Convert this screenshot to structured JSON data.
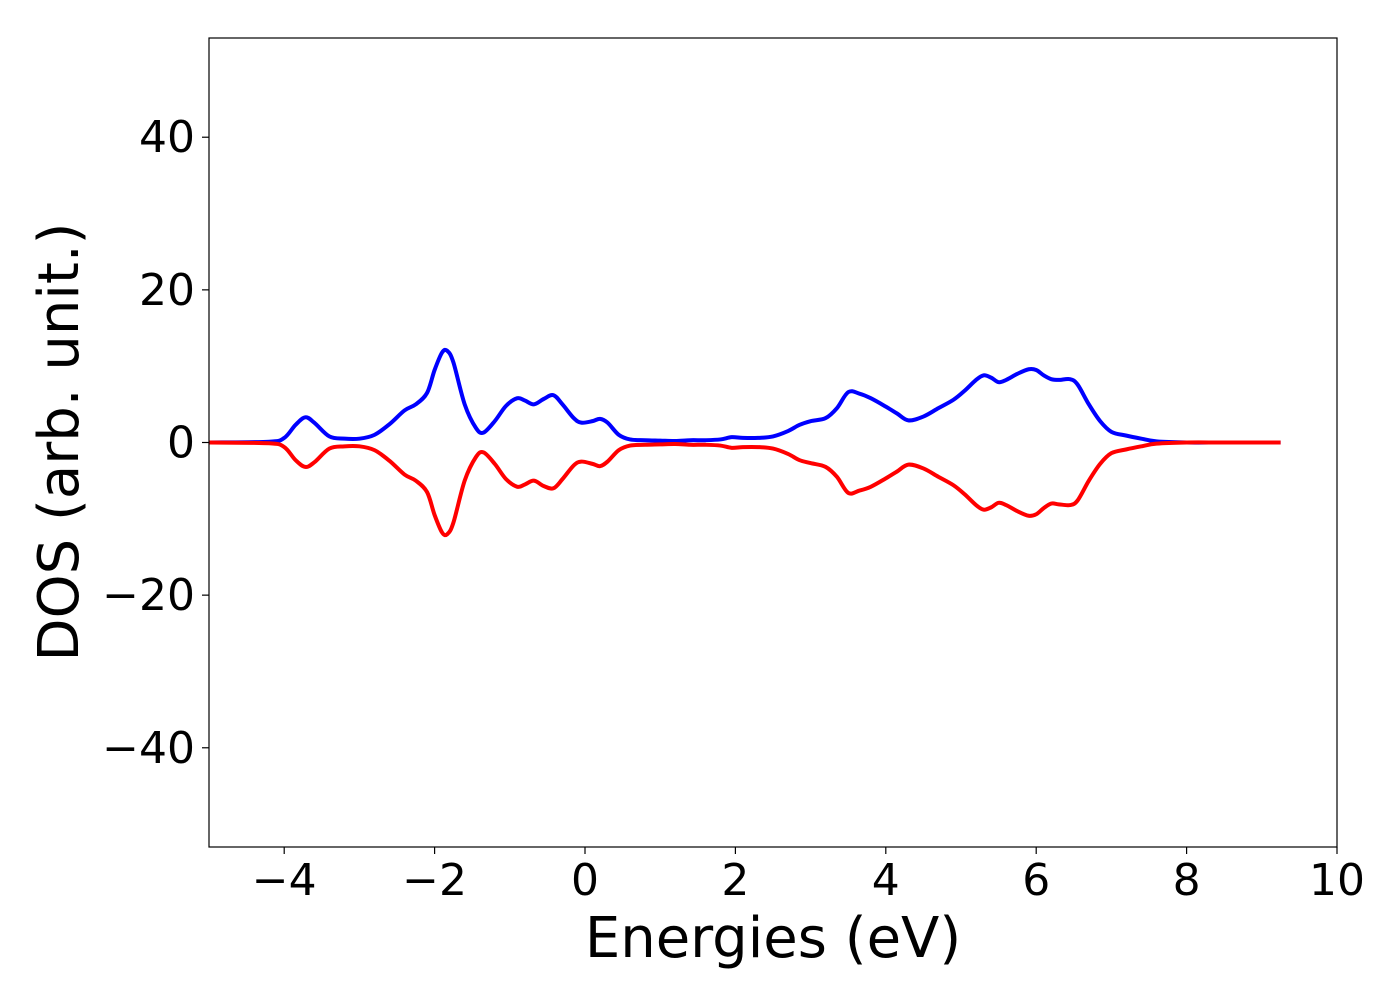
{
  "chart_data": {
    "type": "line",
    "title": "",
    "xlabel": "Energies (eV)",
    "ylabel": "DOS (arb. unit.)",
    "xlim": [
      -5,
      10
    ],
    "ylim": [
      -53,
      53
    ],
    "xticks": [
      -4,
      -2,
      0,
      2,
      4,
      6,
      8,
      10
    ],
    "xtick_labels": [
      "−4",
      "−2",
      "0",
      "2",
      "4",
      "6",
      "8",
      "10"
    ],
    "yticks": [
      -40,
      -20,
      0,
      20,
      40
    ],
    "ytick_labels": [
      "−40",
      "−20",
      "0",
      "20",
      "40"
    ],
    "grid": false,
    "legend": "none",
    "series": [
      {
        "color": "#0000ff",
        "x": [
          -5.0,
          -4.2,
          -4.0,
          -3.85,
          -3.72,
          -3.6,
          -3.4,
          -3.2,
          -3.0,
          -2.8,
          -2.6,
          -2.4,
          -2.25,
          -2.1,
          -2.0,
          -1.9,
          -1.83,
          -1.75,
          -1.6,
          -1.45,
          -1.35,
          -1.2,
          -1.05,
          -0.9,
          -0.8,
          -0.68,
          -0.55,
          -0.42,
          -0.3,
          -0.15,
          -0.05,
          0.1,
          0.2,
          0.3,
          0.45,
          0.6,
          0.8,
          1.0,
          1.2,
          1.4,
          1.6,
          1.8,
          1.95,
          2.1,
          2.3,
          2.5,
          2.7,
          2.85,
          3.0,
          3.2,
          3.35,
          3.5,
          3.65,
          3.8,
          4.0,
          4.15,
          4.3,
          4.5,
          4.7,
          4.9,
          5.05,
          5.2,
          5.3,
          5.4,
          5.5,
          5.6,
          5.75,
          5.9,
          6.0,
          6.1,
          6.2,
          6.3,
          6.45,
          6.55,
          6.7,
          6.85,
          7.0,
          7.2,
          7.4,
          7.6,
          8.0,
          8.5,
          9.25
        ],
        "y": [
          0.0,
          0.1,
          0.6,
          2.3,
          3.3,
          2.6,
          0.8,
          0.5,
          0.5,
          1.0,
          2.4,
          4.2,
          5.0,
          6.5,
          9.5,
          11.8,
          12.0,
          10.5,
          5.0,
          1.9,
          1.3,
          2.8,
          4.8,
          5.8,
          5.5,
          5.0,
          5.7,
          6.2,
          5.0,
          3.2,
          2.6,
          2.8,
          3.1,
          2.6,
          1.0,
          0.4,
          0.3,
          0.25,
          0.2,
          0.3,
          0.3,
          0.4,
          0.7,
          0.6,
          0.6,
          0.8,
          1.5,
          2.3,
          2.8,
          3.2,
          4.5,
          6.6,
          6.4,
          5.8,
          4.7,
          3.8,
          2.9,
          3.4,
          4.5,
          5.6,
          6.8,
          8.2,
          8.8,
          8.5,
          7.9,
          8.2,
          9.0,
          9.6,
          9.5,
          8.8,
          8.3,
          8.2,
          8.3,
          7.6,
          5.0,
          2.8,
          1.4,
          0.9,
          0.5,
          0.15,
          0.0,
          0.0,
          0.0
        ]
      },
      {
        "color": "#ff0000",
        "x": [
          -5.0,
          -4.2,
          -4.0,
          -3.85,
          -3.72,
          -3.6,
          -3.4,
          -3.2,
          -3.0,
          -2.8,
          -2.6,
          -2.4,
          -2.25,
          -2.1,
          -2.0,
          -1.9,
          -1.83,
          -1.75,
          -1.6,
          -1.45,
          -1.35,
          -1.2,
          -1.05,
          -0.9,
          -0.8,
          -0.68,
          -0.55,
          -0.42,
          -0.3,
          -0.15,
          -0.05,
          0.1,
          0.2,
          0.3,
          0.45,
          0.6,
          0.8,
          1.0,
          1.2,
          1.4,
          1.6,
          1.8,
          1.95,
          2.1,
          2.3,
          2.5,
          2.7,
          2.85,
          3.0,
          3.2,
          3.35,
          3.5,
          3.65,
          3.8,
          4.0,
          4.15,
          4.3,
          4.5,
          4.7,
          4.9,
          5.05,
          5.2,
          5.3,
          5.4,
          5.5,
          5.6,
          5.75,
          5.9,
          6.0,
          6.1,
          6.2,
          6.3,
          6.45,
          6.55,
          6.7,
          6.85,
          7.0,
          7.2,
          7.4,
          7.6,
          8.0,
          8.5,
          9.25
        ],
        "y": [
          0.0,
          -0.1,
          -0.6,
          -2.3,
          -3.2,
          -2.6,
          -0.8,
          -0.5,
          -0.5,
          -1.0,
          -2.4,
          -4.2,
          -5.0,
          -6.5,
          -9.5,
          -11.8,
          -12.0,
          -10.5,
          -5.0,
          -1.9,
          -1.3,
          -2.8,
          -4.8,
          -5.8,
          -5.5,
          -5.0,
          -5.7,
          -6.0,
          -4.8,
          -3.0,
          -2.5,
          -2.8,
          -3.1,
          -2.5,
          -1.0,
          -0.4,
          -0.3,
          -0.25,
          -0.2,
          -0.3,
          -0.3,
          -0.4,
          -0.7,
          -0.6,
          -0.6,
          -0.8,
          -1.5,
          -2.3,
          -2.7,
          -3.2,
          -4.5,
          -6.6,
          -6.3,
          -5.8,
          -4.7,
          -3.8,
          -2.9,
          -3.4,
          -4.5,
          -5.6,
          -6.8,
          -8.2,
          -8.8,
          -8.5,
          -7.9,
          -8.2,
          -9.0,
          -9.6,
          -9.4,
          -8.6,
          -8.0,
          -8.1,
          -8.2,
          -7.6,
          -5.0,
          -2.8,
          -1.4,
          -0.9,
          -0.5,
          -0.15,
          0.0,
          0.0,
          0.0
        ]
      }
    ]
  }
}
